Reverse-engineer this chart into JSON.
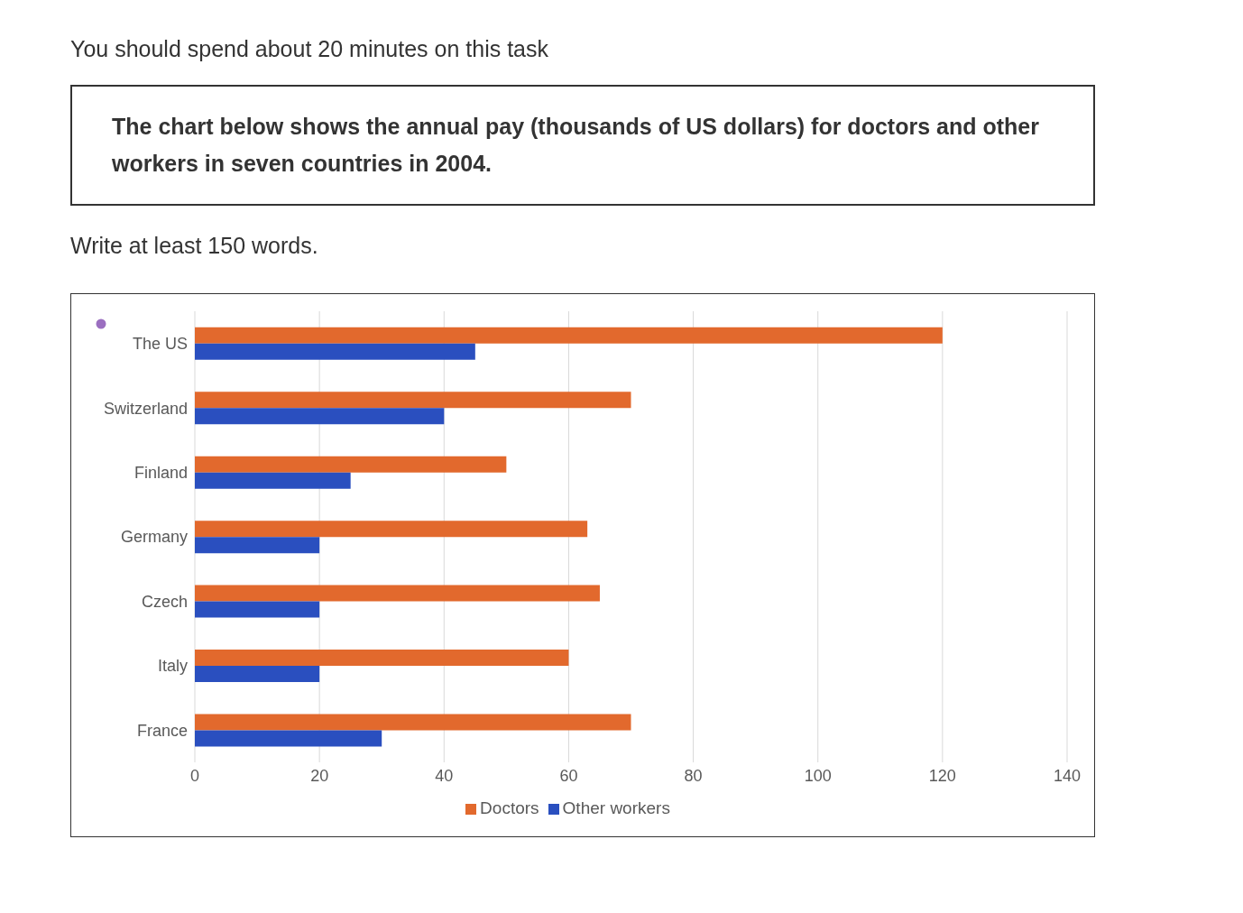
{
  "chart_data": {
    "type": "bar",
    "orientation": "horizontal",
    "title": "The chart below shows the annual pay (thousands of US dollars) for doctors and other workers in seven countries in 2004.",
    "annotations": [
      "You should spend about 20 minutes on this task",
      "Write at least 150 words."
    ],
    "categories": [
      "The US",
      "Switzerland",
      "Finland",
      "Germany",
      "Czech",
      "Italy",
      "France"
    ],
    "series": [
      {
        "name": "Doctors",
        "color": "#e2692d",
        "values": [
          120,
          70,
          50,
          63,
          65,
          60,
          70
        ]
      },
      {
        "name": "Other workers",
        "color": "#2a4fbf",
        "values": [
          45,
          40,
          25,
          20,
          20,
          20,
          30
        ]
      }
    ],
    "xlim": [
      0,
      140
    ],
    "xticks": [
      0,
      20,
      40,
      60,
      80,
      100,
      120,
      140
    ],
    "grid": "x",
    "legend": "bottom"
  }
}
